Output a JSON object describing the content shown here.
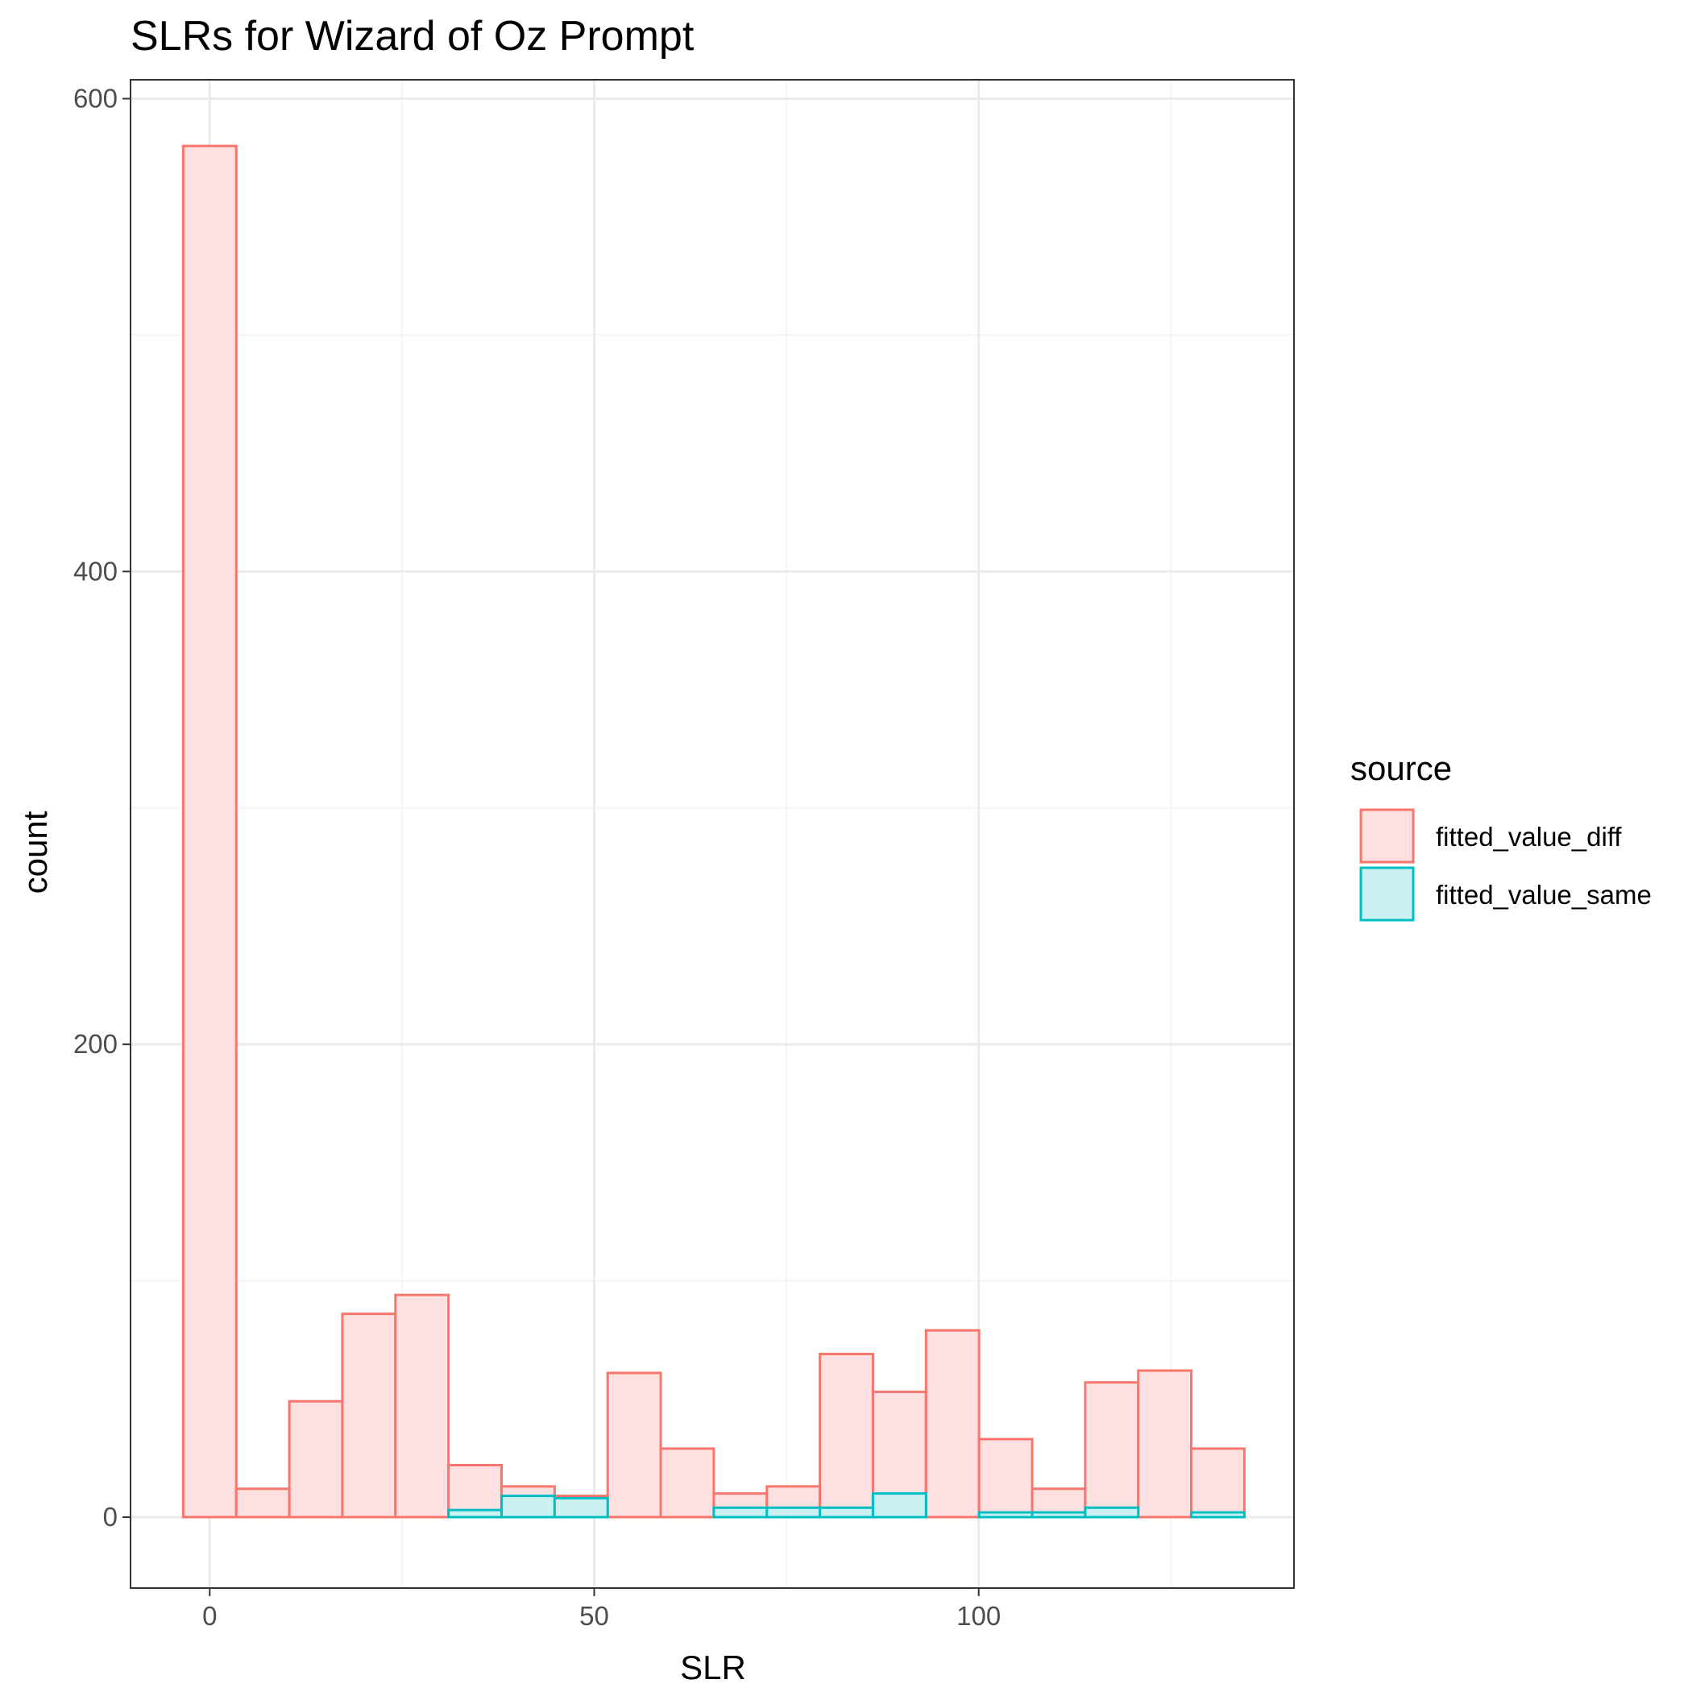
{
  "chart_data": {
    "type": "bar",
    "subtype": "overlaid-histogram",
    "title": "SLRs for Wizard of Oz Prompt",
    "xlabel": "SLR",
    "ylabel": "count",
    "xlim": [
      -10.3,
      141.0
    ],
    "ylim": [
      -30,
      608
    ],
    "x_ticks": [
      0,
      50,
      100
    ],
    "y_ticks": [
      0,
      200,
      400,
      600
    ],
    "x_tick_labels": [
      "0",
      "50",
      "100"
    ],
    "y_tick_labels": [
      "0",
      "200",
      "400",
      "600"
    ],
    "grid": true,
    "legend": {
      "title": "source",
      "position": "right"
    },
    "bin_edges": [
      -3.45,
      3.45,
      10.35,
      17.25,
      24.15,
      31.05,
      37.95,
      44.85,
      51.75,
      58.65,
      65.55,
      72.45,
      79.35,
      86.25,
      93.15,
      100.05,
      106.95,
      113.85,
      120.75,
      127.65,
      134.55
    ],
    "series": [
      {
        "name": "fitted_value_diff",
        "color": "#F8766D",
        "fill": "#FDE0DF",
        "values": [
          580,
          12,
          49,
          86,
          94,
          22,
          13,
          9,
          61,
          29,
          10,
          13,
          69,
          53,
          79,
          33,
          12,
          57,
          62,
          29
        ]
      },
      {
        "name": "fitted_value_same",
        "color": "#00BFC4",
        "fill": "#CCF1F2",
        "values": [
          0,
          0,
          0,
          0,
          0,
          3,
          9,
          8,
          0,
          0,
          4,
          4,
          4,
          10,
          0,
          2,
          2,
          4,
          0,
          2
        ]
      }
    ]
  }
}
